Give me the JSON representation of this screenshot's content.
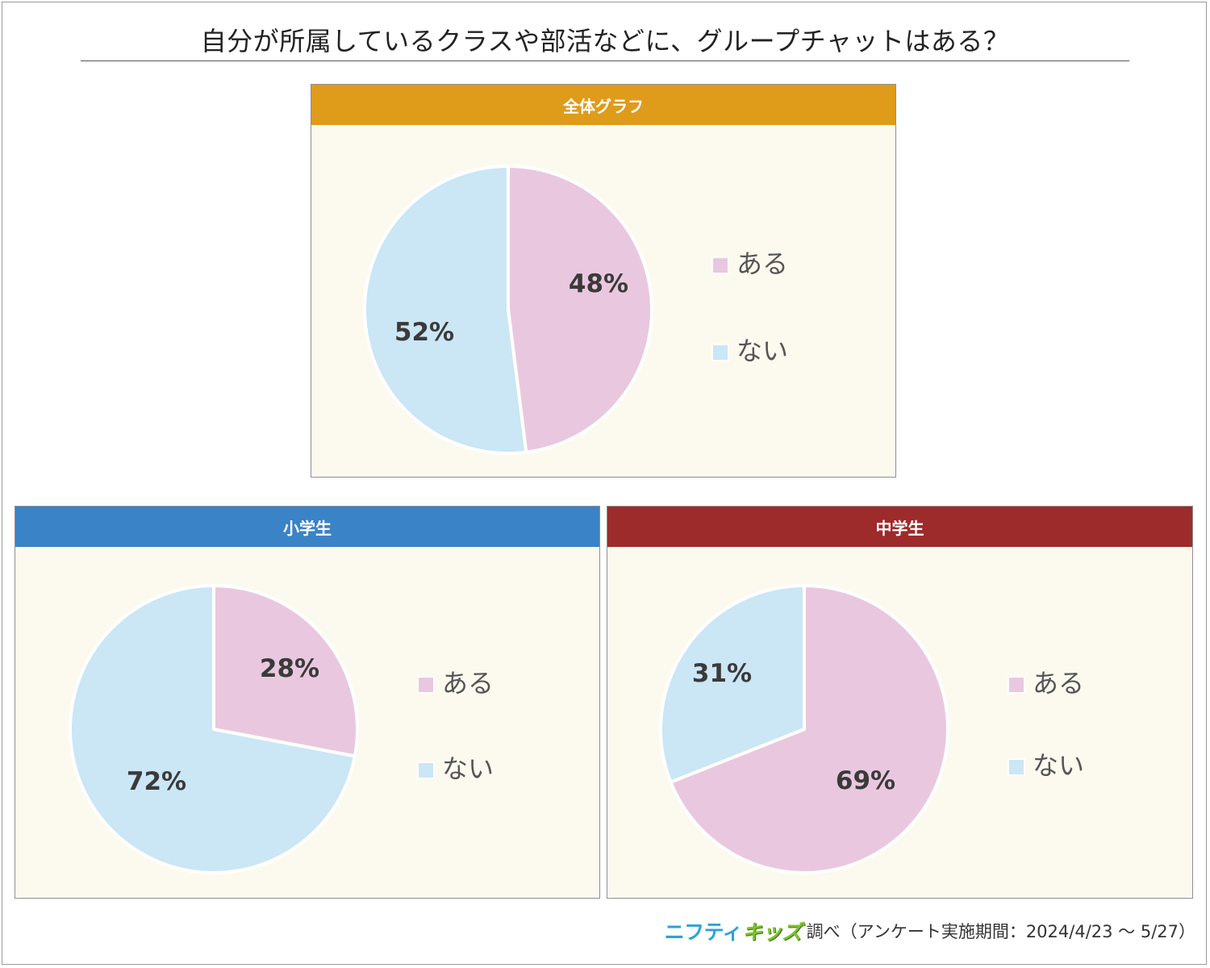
{
  "title": "自分が所属しているクラスや部活などに、グループチャットはある？",
  "colors": {
    "aru": "#e9c8df",
    "nai": "#cbe6f5",
    "header_all": "#df9b1a",
    "header_elementary": "#3a83c6",
    "header_middle": "#9d2b2b"
  },
  "legend": [
    "ある",
    "ない"
  ],
  "chart_data": [
    {
      "type": "pie",
      "title": "全体グラフ",
      "categories": [
        "ある",
        "ない"
      ],
      "values": [
        48,
        52
      ],
      "labels": [
        "48%",
        "52%"
      ]
    },
    {
      "type": "pie",
      "title": "小学生",
      "categories": [
        "ある",
        "ない"
      ],
      "values": [
        28,
        72
      ],
      "labels": [
        "28%",
        "72%"
      ]
    },
    {
      "type": "pie",
      "title": "中学生",
      "categories": [
        "ある",
        "ない"
      ],
      "values": [
        69,
        31
      ],
      "labels": [
        "69%",
        "31%"
      ]
    }
  ],
  "footer": {
    "logo_part1": "ニフティ",
    "logo_part2": "キッズ",
    "text": "調べ（アンケート実施期間：2024/4/23 ～ 5/27）"
  }
}
